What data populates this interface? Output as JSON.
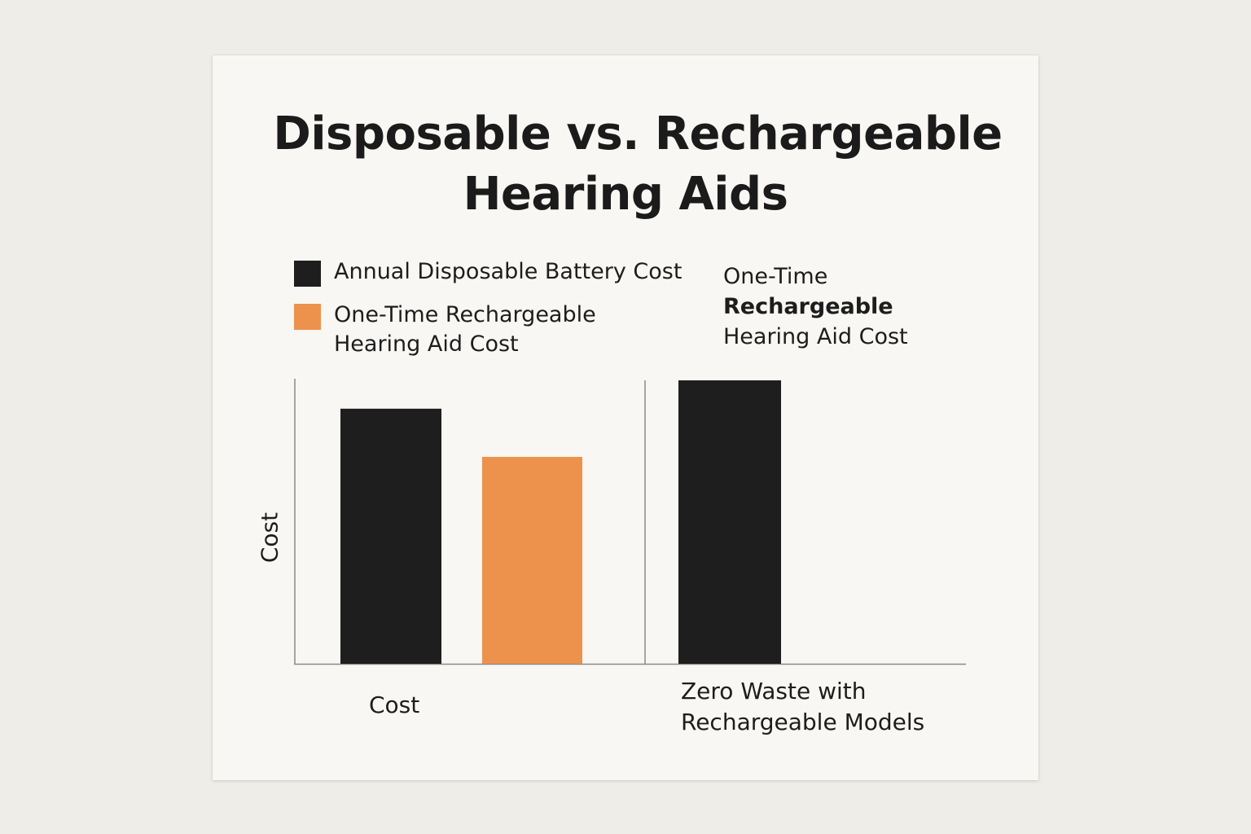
{
  "title": [
    "Disposable vs. Rechargeable",
    "Hearing Aids"
  ],
  "legend": [
    {
      "label": [
        "Annual Disposable Battery Cost"
      ],
      "color": "#1e1e1e"
    },
    {
      "label": [
        "One-Time Rechargeable",
        "Hearing Aid Cost"
      ],
      "color": "#ed924c"
    }
  ],
  "annotation": {
    "line1": "One-Time",
    "line2": "Rechargeable",
    "line3": "Hearing Aid Cost"
  },
  "chart_data": {
    "type": "bar",
    "ylabel": "Cost",
    "yticks_shown": false,
    "ylim": [
      0,
      100
    ],
    "panels": [
      {
        "category": [
          "Cost"
        ],
        "bars": [
          {
            "series": "Annual Disposable Battery Cost",
            "value": 90,
            "color": "#1e1e1e"
          },
          {
            "series": "One-Time Rechargeable Hearing Aid Cost",
            "value": 73,
            "color": "#ed924c"
          }
        ]
      },
      {
        "category": [
          "Zero Waste with",
          "Rechargeable Models"
        ],
        "bars": [
          {
            "series": "Annual Disposable Battery Cost",
            "value": 100,
            "color": "#1e1e1e"
          }
        ]
      }
    ]
  }
}
